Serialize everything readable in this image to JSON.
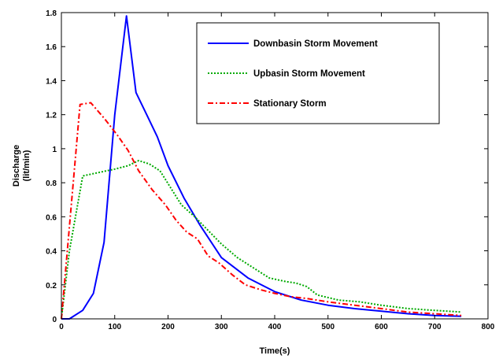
{
  "chart_data": {
    "type": "line",
    "title": "",
    "xlabel": "Time(s)",
    "ylabel": "Discharge",
    "ylabel_unit": "(lit/min)",
    "xlim": [
      0,
      800
    ],
    "ylim": [
      0,
      1.8
    ],
    "xticks": [
      "0",
      "100",
      "200",
      "300",
      "400",
      "500",
      "600",
      "700",
      "800"
    ],
    "yticks": [
      "0",
      "0.2",
      "0.4",
      "0.6",
      "0.8",
      "1",
      "1.2",
      "1.4",
      "1.6",
      "1.8"
    ],
    "grid": false,
    "legend_position": "top-right",
    "series": [
      {
        "name": "Downbasin Storm Movement",
        "color": "#0000ff",
        "style": "solid",
        "points": [
          [
            0,
            0
          ],
          [
            15,
            0
          ],
          [
            40,
            0.05
          ],
          [
            60,
            0.15
          ],
          [
            80,
            0.45
          ],
          [
            100,
            1.2
          ],
          [
            122,
            1.78
          ],
          [
            140,
            1.33
          ],
          [
            160,
            1.2
          ],
          [
            180,
            1.07
          ],
          [
            200,
            0.9
          ],
          [
            230,
            0.71
          ],
          [
            260,
            0.55
          ],
          [
            300,
            0.36
          ],
          [
            350,
            0.24
          ],
          [
            400,
            0.16
          ],
          [
            450,
            0.11
          ],
          [
            500,
            0.08
          ],
          [
            550,
            0.06
          ],
          [
            600,
            0.045
          ],
          [
            650,
            0.03
          ],
          [
            700,
            0.02
          ],
          [
            750,
            0.015
          ]
        ]
      },
      {
        "name": "Upbasin Storm Movement",
        "color": "#00aa00",
        "style": "dotted",
        "points": [
          [
            0,
            0
          ],
          [
            15,
            0.4
          ],
          [
            40,
            0.84
          ],
          [
            70,
            0.86
          ],
          [
            100,
            0.88
          ],
          [
            125,
            0.9
          ],
          [
            145,
            0.93
          ],
          [
            165,
            0.91
          ],
          [
            185,
            0.87
          ],
          [
            205,
            0.77
          ],
          [
            225,
            0.67
          ],
          [
            250,
            0.6
          ],
          [
            275,
            0.52
          ],
          [
            300,
            0.44
          ],
          [
            330,
            0.36
          ],
          [
            360,
            0.3
          ],
          [
            390,
            0.24
          ],
          [
            420,
            0.22
          ],
          [
            440,
            0.21
          ],
          [
            460,
            0.19
          ],
          [
            480,
            0.14
          ],
          [
            520,
            0.11
          ],
          [
            560,
            0.1
          ],
          [
            600,
            0.08
          ],
          [
            650,
            0.06
          ],
          [
            700,
            0.05
          ],
          [
            750,
            0.04
          ]
        ]
      },
      {
        "name": "Stationary Storm",
        "color": "#ff0000",
        "style": "dashdot",
        "points": [
          [
            0,
            0
          ],
          [
            35,
            1.26
          ],
          [
            55,
            1.27
          ],
          [
            80,
            1.18
          ],
          [
            105,
            1.08
          ],
          [
            125,
            0.99
          ],
          [
            145,
            0.87
          ],
          [
            170,
            0.76
          ],
          [
            195,
            0.67
          ],
          [
            215,
            0.58
          ],
          [
            235,
            0.51
          ],
          [
            255,
            0.47
          ],
          [
            275,
            0.37
          ],
          [
            295,
            0.33
          ],
          [
            320,
            0.26
          ],
          [
            345,
            0.2
          ],
          [
            375,
            0.17
          ],
          [
            400,
            0.15
          ],
          [
            430,
            0.13
          ],
          [
            460,
            0.12
          ],
          [
            500,
            0.1
          ],
          [
            550,
            0.08
          ],
          [
            600,
            0.06
          ],
          [
            650,
            0.04
          ],
          [
            700,
            0.03
          ],
          [
            750,
            0.02
          ]
        ]
      }
    ]
  }
}
